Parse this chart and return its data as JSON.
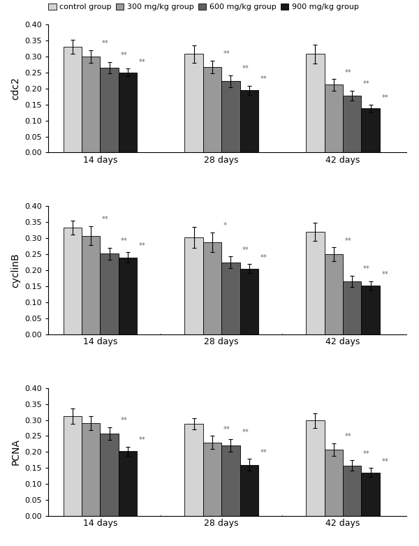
{
  "panels": [
    {
      "ylabel": "cdc2",
      "groups": [
        "14 days",
        "28 days",
        "42 days"
      ],
      "values": [
        [
          0.33,
          0.3,
          0.265,
          0.25
        ],
        [
          0.308,
          0.267,
          0.223,
          0.195
        ],
        [
          0.308,
          0.212,
          0.178,
          0.138
        ]
      ],
      "errors": [
        [
          0.022,
          0.02,
          0.018,
          0.012
        ],
        [
          0.028,
          0.02,
          0.018,
          0.014
        ],
        [
          0.03,
          0.018,
          0.016,
          0.012
        ]
      ],
      "sig": [
        [
          false,
          "**",
          "**",
          "**"
        ],
        [
          false,
          "**",
          "**",
          "**"
        ],
        [
          false,
          "**",
          "**",
          "**"
        ]
      ]
    },
    {
      "ylabel": "cyclinB",
      "groups": [
        "14 days",
        "28 days",
        "42 days"
      ],
      "values": [
        [
          0.333,
          0.308,
          0.252,
          0.24
        ],
        [
          0.303,
          0.288,
          0.225,
          0.205
        ],
        [
          0.32,
          0.25,
          0.165,
          0.152
        ]
      ],
      "errors": [
        [
          0.022,
          0.03,
          0.018,
          0.016
        ],
        [
          0.033,
          0.03,
          0.018,
          0.014
        ],
        [
          0.028,
          0.022,
          0.018,
          0.014
        ]
      ],
      "sig": [
        [
          false,
          "**",
          "**",
          "**"
        ],
        [
          false,
          "*",
          "**",
          "**"
        ],
        [
          false,
          "**",
          "**",
          "**"
        ]
      ]
    },
    {
      "ylabel": "PCNA",
      "groups": [
        "14 days",
        "28 days",
        "42 days"
      ],
      "values": [
        [
          0.312,
          0.29,
          0.258,
          0.202
        ],
        [
          0.288,
          0.23,
          0.22,
          0.16
        ],
        [
          0.298,
          0.208,
          0.158,
          0.136
        ]
      ],
      "errors": [
        [
          0.025,
          0.022,
          0.02,
          0.015
        ],
        [
          0.018,
          0.02,
          0.02,
          0.018
        ],
        [
          0.022,
          0.02,
          0.016,
          0.014
        ]
      ],
      "sig": [
        [
          false,
          false,
          "**",
          "**"
        ],
        [
          false,
          "**",
          "**",
          "**"
        ],
        [
          false,
          "**",
          "**",
          "**"
        ]
      ]
    }
  ],
  "bar_colors": [
    "#d4d4d4",
    "#999999",
    "#606060",
    "#1a1a1a"
  ],
  "legend_labels": [
    "control group",
    "300 mg/kg group",
    "600 mg/kg group",
    "900 mg/kg group"
  ],
  "ylim": [
    0,
    0.4
  ],
  "yticks": [
    0,
    0.05,
    0.1,
    0.15,
    0.2,
    0.25,
    0.3,
    0.35,
    0.4
  ],
  "bar_width": 0.16,
  "group_centers": [
    1.0,
    2.05,
    3.1
  ],
  "xlim": [
    0.55,
    3.65
  ]
}
